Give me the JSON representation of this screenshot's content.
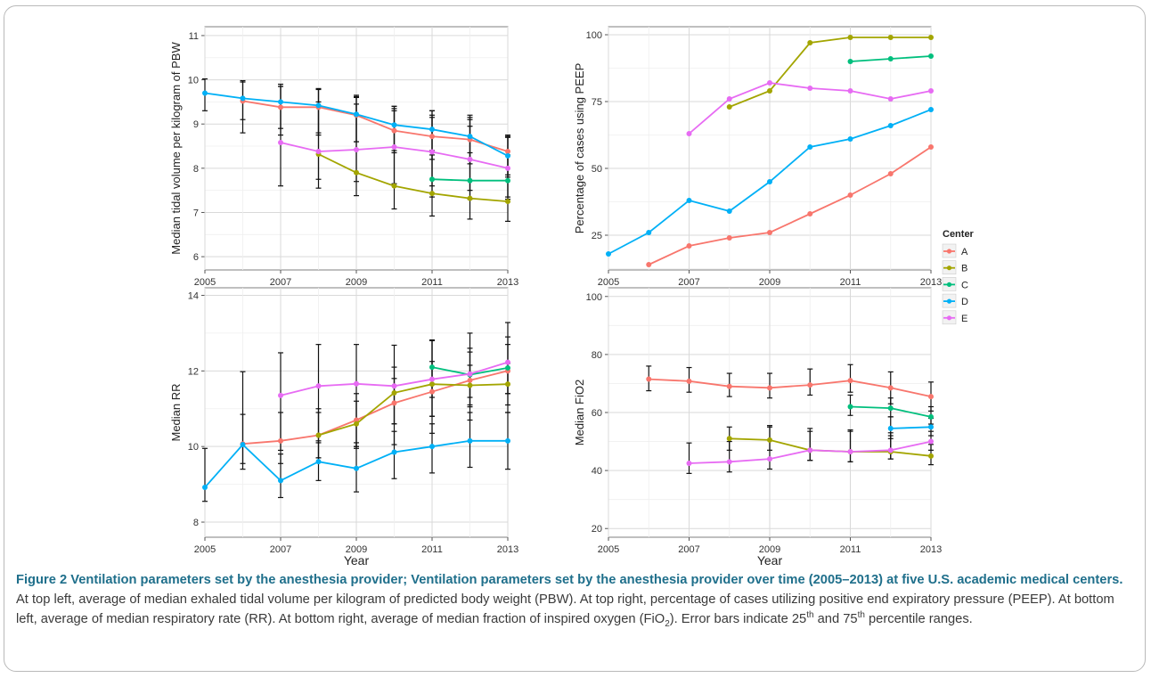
{
  "chart_data": [
    {
      "type": "line",
      "panel": "top-left",
      "ylabel": "Median tidal volume per kilogram of PBW",
      "xlabel": "",
      "x_ticks": [
        "2005",
        "2007",
        "2009",
        "2011",
        "2013"
      ],
      "y_ticks": [
        "6",
        "7",
        "8",
        "9",
        "10",
        "11"
      ],
      "xlim": [
        2005,
        2013
      ],
      "ylim": [
        5.7,
        11.2
      ],
      "error_bars": true,
      "series": [
        {
          "name": "A",
          "x": [
            2006,
            2007,
            2008,
            2009,
            2010,
            2011,
            2012,
            2013
          ],
          "values": [
            9.52,
            9.38,
            9.38,
            9.2,
            8.85,
            8.72,
            8.65,
            8.38
          ],
          "lo": [
            8.8,
            8.75,
            8.75,
            8.6,
            8.35,
            8.2,
            8.1,
            7.85
          ],
          "hi": [
            9.95,
            9.85,
            9.8,
            9.65,
            9.3,
            9.2,
            9.1,
            8.7
          ]
        },
        {
          "name": "B",
          "x": [
            2008,
            2009,
            2010,
            2011,
            2012,
            2013
          ],
          "values": [
            8.32,
            7.9,
            7.6,
            7.43,
            7.32,
            7.25
          ],
          "lo": [
            7.55,
            7.38,
            7.08,
            6.92,
            6.85,
            6.8
          ],
          "hi": [
            9.78,
            9.62,
            9.4,
            9.15,
            8.95,
            8.72
          ]
        },
        {
          "name": "C",
          "x": [
            2011,
            2012,
            2013
          ],
          "values": [
            7.75,
            7.72,
            7.72
          ],
          "lo": [
            7.35,
            7.3,
            7.3
          ],
          "hi": [
            8.4,
            8.35,
            8.3
          ]
        },
        {
          "name": "D",
          "x": [
            2005,
            2006,
            2007,
            2008,
            2009,
            2010,
            2011,
            2012,
            2013
          ],
          "values": [
            9.7,
            9.58,
            9.5,
            9.42,
            9.22,
            8.98,
            8.88,
            8.72,
            8.28
          ],
          "lo": [
            9.3,
            9.1,
            8.9,
            8.8,
            8.6,
            8.4,
            8.3,
            8.2,
            7.8
          ],
          "hi": [
            10.02,
            9.98,
            9.85,
            9.8,
            9.6,
            9.35,
            9.3,
            9.15,
            8.75
          ]
        },
        {
          "name": "E",
          "x": [
            2007,
            2008,
            2009,
            2010,
            2011,
            2012,
            2013
          ],
          "values": [
            8.58,
            8.38,
            8.42,
            8.48,
            8.37,
            8.2,
            8.0
          ],
          "lo": [
            7.6,
            7.75,
            7.7,
            7.65,
            7.6,
            7.5,
            7.35
          ],
          "hi": [
            9.9,
            9.5,
            9.45,
            9.4,
            9.3,
            9.2,
            8.7
          ]
        }
      ]
    },
    {
      "type": "line",
      "panel": "top-right",
      "ylabel": "Percentage of cases using PEEP",
      "xlabel": "",
      "x_ticks": [
        "2005",
        "2007",
        "2009",
        "2011",
        "2013"
      ],
      "y_ticks": [
        "25",
        "50",
        "75",
        "100"
      ],
      "xlim": [
        2005,
        2013
      ],
      "ylim": [
        12,
        103
      ],
      "error_bars": false,
      "series": [
        {
          "name": "A",
          "x": [
            2006,
            2007,
            2008,
            2009,
            2010,
            2011,
            2012,
            2013
          ],
          "values": [
            14,
            21,
            24,
            26,
            33,
            40,
            48,
            58
          ]
        },
        {
          "name": "B",
          "x": [
            2008,
            2009,
            2010,
            2011,
            2012,
            2013
          ],
          "values": [
            73,
            79,
            97,
            99,
            99,
            99
          ]
        },
        {
          "name": "C",
          "x": [
            2011,
            2012,
            2013
          ],
          "values": [
            90,
            91,
            92
          ]
        },
        {
          "name": "D",
          "x": [
            2005,
            2006,
            2007,
            2008,
            2009,
            2010,
            2011,
            2012,
            2013
          ],
          "values": [
            18,
            26,
            38,
            34,
            45,
            58,
            61,
            66,
            72
          ]
        },
        {
          "name": "E",
          "x": [
            2007,
            2008,
            2009,
            2010,
            2011,
            2012,
            2013
          ],
          "values": [
            63,
            76,
            82,
            80,
            79,
            76,
            79
          ]
        }
      ]
    },
    {
      "type": "line",
      "panel": "bottom-left",
      "ylabel": "Median RR",
      "xlabel": "Year",
      "x_ticks": [
        "2005",
        "2007",
        "2009",
        "2011",
        "2013"
      ],
      "y_ticks": [
        "8",
        "10",
        "12",
        "14"
      ],
      "xlim": [
        2005,
        2013
      ],
      "ylim": [
        7.6,
        14.2
      ],
      "error_bars": true,
      "series": [
        {
          "name": "A",
          "x": [
            2006,
            2007,
            2008,
            2009,
            2010,
            2011,
            2012,
            2013
          ],
          "values": [
            10.07,
            10.15,
            10.3,
            10.7,
            11.15,
            11.45,
            11.75,
            12.0
          ],
          "lo": [
            9.4,
            9.55,
            9.7,
            10.0,
            10.6,
            10.8,
            11.1,
            11.4
          ],
          "hi": [
            10.85,
            10.9,
            11.0,
            11.4,
            11.8,
            12.25,
            12.6,
            12.9
          ]
        },
        {
          "name": "B",
          "x": [
            2008,
            2009,
            2010,
            2011,
            2012,
            2013
          ],
          "values": [
            10.3,
            10.6,
            11.42,
            11.65,
            11.62,
            11.65
          ],
          "lo": [
            9.7,
            10.0,
            10.6,
            10.8,
            11.05,
            11.1
          ],
          "hi": [
            10.9,
            11.2,
            12.1,
            12.8,
            12.15,
            12.2
          ]
        },
        {
          "name": "C",
          "x": [
            2011,
            2012,
            2013
          ],
          "values": [
            12.1,
            11.9,
            12.08
          ],
          "lo": [
            11.3,
            11.3,
            11.4
          ],
          "hi": [
            12.8,
            12.5,
            12.7
          ]
        },
        {
          "name": "D",
          "x": [
            2005,
            2006,
            2007,
            2008,
            2009,
            2010,
            2011,
            2012,
            2013
          ],
          "values": [
            8.92,
            10.05,
            9.1,
            9.6,
            9.42,
            9.85,
            10.0,
            10.15,
            10.15
          ],
          "lo": [
            8.55,
            9.55,
            8.65,
            9.1,
            8.8,
            9.15,
            9.3,
            9.45,
            9.4
          ],
          "hi": [
            9.95,
            11.98,
            9.8,
            10.1,
            10.1,
            10.4,
            10.6,
            10.9,
            10.9
          ]
        },
        {
          "name": "E",
          "x": [
            2007,
            2008,
            2009,
            2010,
            2011,
            2012,
            2013
          ],
          "values": [
            11.35,
            11.6,
            11.66,
            11.6,
            11.78,
            11.92,
            12.23
          ],
          "lo": [
            9.9,
            10.15,
            9.95,
            10.05,
            10.35,
            10.7,
            10.9
          ],
          "hi": [
            12.48,
            12.7,
            12.7,
            12.68,
            12.82,
            13.0,
            13.28
          ]
        }
      ]
    },
    {
      "type": "line",
      "panel": "bottom-right",
      "ylabel": "Median FiO2",
      "xlabel": "Year",
      "x_ticks": [
        "2005",
        "2007",
        "2009",
        "2011",
        "2013"
      ],
      "y_ticks": [
        "20",
        "40",
        "60",
        "80",
        "100"
      ],
      "xlim": [
        2005,
        2013
      ],
      "ylim": [
        17,
        103
      ],
      "error_bars": true,
      "series": [
        {
          "name": "A",
          "x": [
            2006,
            2007,
            2008,
            2009,
            2010,
            2011,
            2012,
            2013
          ],
          "values": [
            71.5,
            70.8,
            69,
            68.5,
            69.5,
            71,
            68.5,
            65.5
          ],
          "lo": [
            67.5,
            67,
            65.5,
            65,
            66,
            67,
            63,
            60.5
          ],
          "hi": [
            76,
            75.5,
            73.5,
            73.5,
            75,
            76.5,
            74,
            70.5
          ]
        },
        {
          "name": "B",
          "x": [
            2008,
            2009,
            2010,
            2011,
            2012,
            2013
          ],
          "values": [
            51,
            50.5,
            47,
            46.5,
            46.5,
            45
          ],
          "lo": [
            47,
            47,
            43.5,
            43,
            44,
            42
          ],
          "hi": [
            55,
            55.5,
            53.5,
            54,
            53,
            49
          ]
        },
        {
          "name": "C",
          "x": [
            2011,
            2012,
            2013
          ],
          "values": [
            62,
            61.5,
            58.5
          ],
          "lo": [
            59,
            58.5,
            56
          ],
          "hi": [
            66,
            65,
            62
          ]
        },
        {
          "name": "D",
          "x": [
            2012,
            2013
          ],
          "values": [
            54.5,
            55
          ],
          "lo": [
            51,
            52
          ],
          "hi": [
            58.5,
            58
          ]
        },
        {
          "name": "E",
          "x": [
            2007,
            2008,
            2009,
            2010,
            2011,
            2012,
            2013
          ],
          "values": [
            42.5,
            43,
            44,
            47,
            46.5,
            47,
            50
          ],
          "lo": [
            39,
            39.5,
            40.5,
            43.5,
            43,
            44,
            47
          ],
          "hi": [
            49.5,
            50,
            55,
            54.5,
            53.5,
            52,
            53.5
          ]
        }
      ]
    }
  ],
  "legend": {
    "title": "Center",
    "entries": [
      "A",
      "B",
      "C",
      "D",
      "E"
    ],
    "colors": [
      "#F8766D",
      "#A3A500",
      "#00BF7D",
      "#00B0F6",
      "#E76BF3"
    ]
  },
  "caption": {
    "title": "Figure 2 Ventilation parameters set by the anesthesia provider; Ventilation parameters set by the anesthesia provider over time (2005–2013) at five U.S. academic medical centers.",
    "body": " At top left, average of median exhaled tidal volume per kilogram of predicted body weight (PBW). At top right, percentage of cases utilizing positive end expiratory pressure (PEEP). At bottom left, average of median respiratory rate (RR). At bottom right, average of median fraction of inspired oxygen (FiO",
    "sub2": "2",
    "body2": "). Error bars indicate 25",
    "sup1": "th",
    "body3": " and 75",
    "sup2": "th",
    "body4": " percentile ranges."
  }
}
